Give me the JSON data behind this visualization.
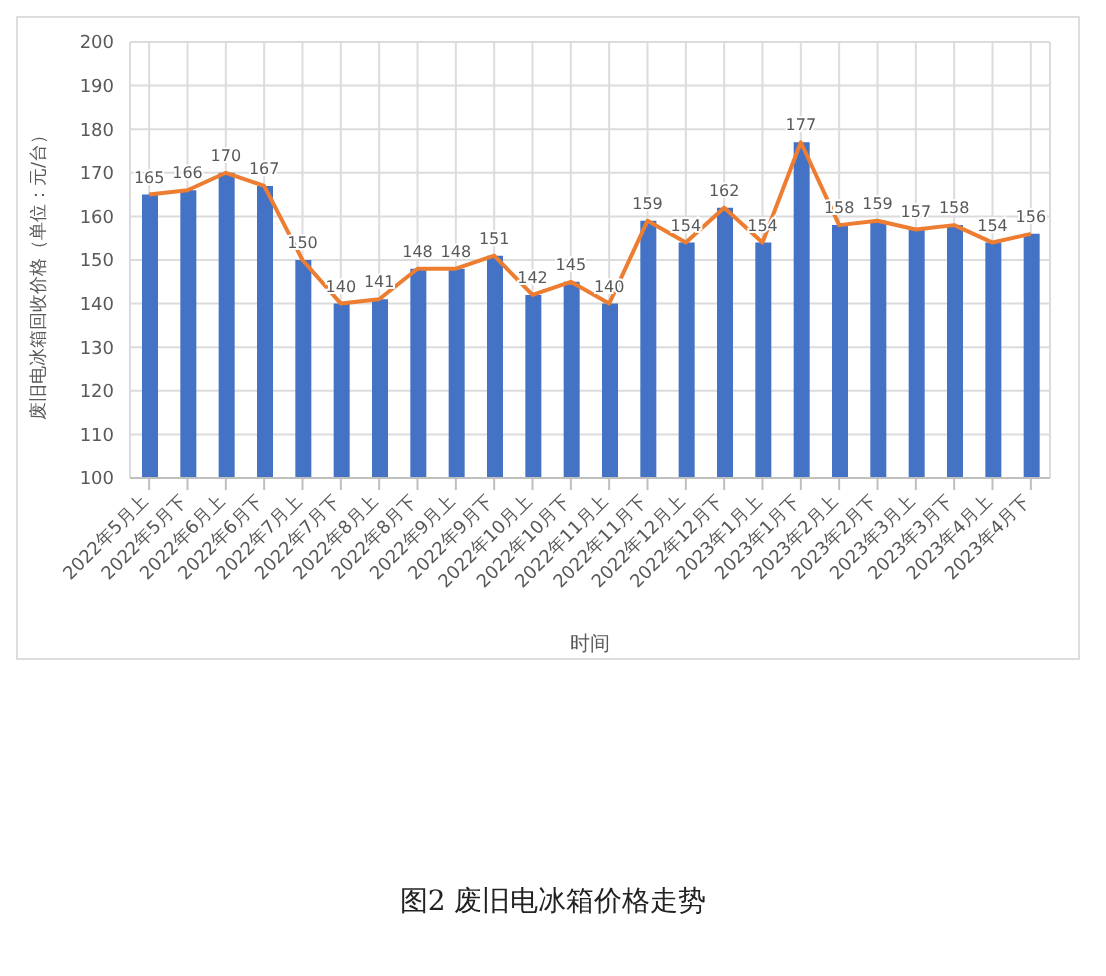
{
  "chart_data": {
    "type": "bar",
    "ylabel": "废旧电冰箱回收价格（单位：元/台）",
    "xlabel": "时间",
    "categories": [
      "2022年5月上",
      "2022年5月下",
      "2022年6月上",
      "2022年6月下",
      "2022年7月上",
      "2022年7月下",
      "2022年8月上",
      "2022年8月下",
      "2022年9月上",
      "2022年9月下",
      "2022年10月上",
      "2022年10月下",
      "2022年11月上",
      "2022年11月下",
      "2022年12月上",
      "2022年12月下",
      "2023年1月上",
      "2023年1月下",
      "2023年2月上",
      "2023年2月下",
      "2023年3月上",
      "2023年3月下",
      "2023年4月上",
      "2023年4月下"
    ],
    "series": [
      {
        "color": "#4472c4",
        "values": [
          165,
          166,
          170,
          167,
          150,
          140,
          141,
          148,
          148,
          151,
          142,
          145,
          140,
          159,
          154,
          162,
          154,
          177,
          158,
          159,
          157,
          158,
          154,
          156
        ]
      },
      {
        "type": "line",
        "color": "#ed7d31",
        "values": [
          165,
          166,
          170,
          167,
          150,
          140,
          141,
          148,
          148,
          151,
          142,
          145,
          140,
          159,
          154,
          162,
          154,
          177,
          158,
          159,
          157,
          158,
          154,
          156
        ],
        "value_labels": [
          "165",
          "166",
          "170",
          "167",
          "150",
          "140",
          "141",
          "148",
          "148",
          "151",
          "142",
          "145",
          "140",
          "159",
          "154",
          "162",
          "154",
          "177",
          "158",
          "159",
          "157",
          "158",
          "154",
          "156"
        ]
      }
    ],
    "ylim": [
      100,
      200
    ],
    "yticks": [
      100,
      110,
      120,
      130,
      140,
      150,
      160,
      170,
      180,
      190,
      200
    ],
    "grid": true,
    "marker": "none",
    "annotations": [
      "图2  废旧电冰箱价格走势"
    ]
  }
}
